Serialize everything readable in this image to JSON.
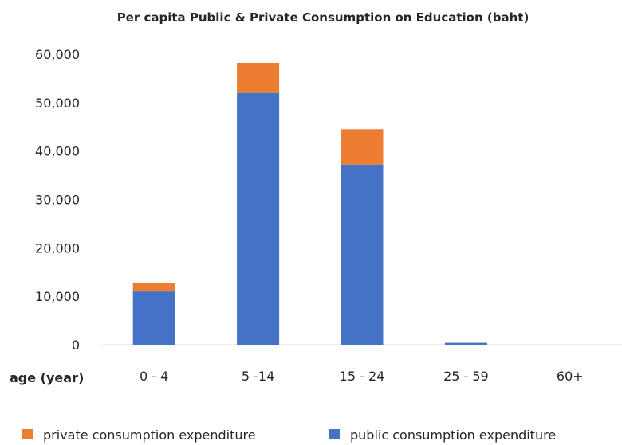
{
  "chart_data": {
    "type": "bar",
    "stacked": true,
    "title": "Per capita Public & Private Consumption on Education (baht)",
    "xlabel": "age (year)",
    "ylabel": "",
    "ylim": [
      0,
      60000
    ],
    "yticks": [
      "0",
      "10,000",
      "20,000",
      "30,000",
      "40,000",
      "50,000",
      "60,000"
    ],
    "categories": [
      "0 - 4",
      "5 -14",
      "15 - 24",
      "25 - 59",
      "60+"
    ],
    "series": [
      {
        "name": "public consumption expenditure",
        "color": "#4472C4",
        "values": [
          11000,
          52000,
          37200,
          400,
          0
        ]
      },
      {
        "name": "private consumption expenditure",
        "color": "#ED7D31",
        "values": [
          1700,
          6200,
          7300,
          0,
          0
        ]
      }
    ],
    "legend": {
      "placement": "bottom",
      "order": [
        "private consumption expenditure",
        "public consumption expenditure"
      ]
    },
    "grid": false
  }
}
